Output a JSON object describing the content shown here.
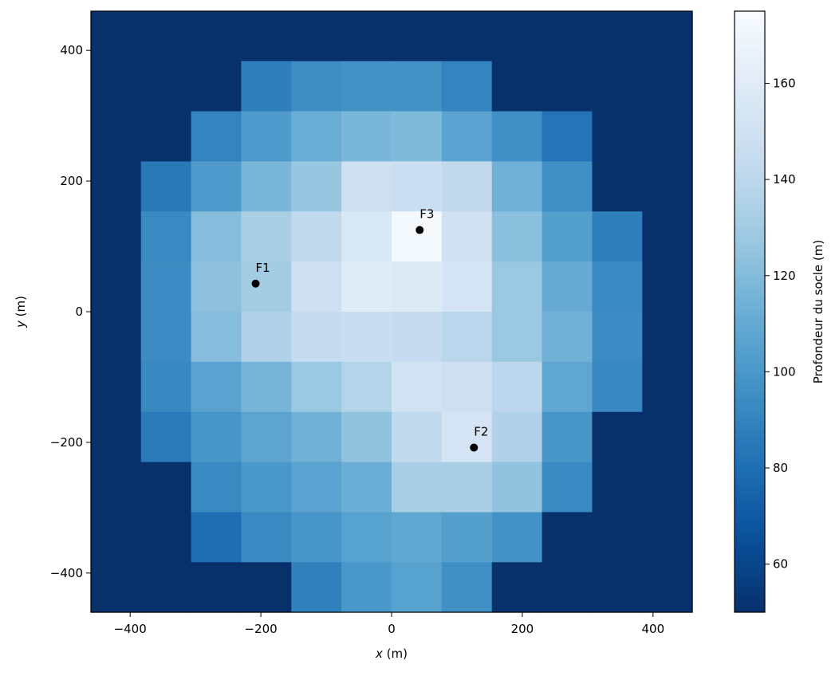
{
  "chart_data": {
    "type": "heatmap",
    "title": "",
    "xlabel_var": "x",
    "xlabel_unit": " (m)",
    "ylabel_var": "y",
    "ylabel_unit": " (m)",
    "colorbar_label": "Profondeur du socle (m)",
    "colormap": "Blues_r",
    "xlim": [
      -460,
      460
    ],
    "ylim": [
      -460,
      460
    ],
    "x_ticks": [
      -400,
      -200,
      0,
      200,
      400
    ],
    "y_ticks": [
      -400,
      -200,
      0,
      200,
      400
    ],
    "x_tick_labels": [
      "−400",
      "−200",
      "0",
      "200",
      "400"
    ],
    "y_tick_labels": [
      "−400",
      "−200",
      "0",
      "200",
      "400"
    ],
    "cell_size": 76.7,
    "color_range": [
      50,
      175
    ],
    "colorbar_ticks": [
      60,
      80,
      100,
      120,
      140,
      160
    ],
    "grid": false,
    "legend": "none",
    "rows_top_to_bottom": [
      [
        50,
        50,
        50,
        50,
        50,
        50,
        50,
        50,
        50,
        50,
        50,
        50
      ],
      [
        50,
        50,
        50,
        88,
        95,
        97,
        97,
        90,
        50,
        50,
        50,
        50
      ],
      [
        50,
        50,
        90,
        102,
        112,
        117,
        119,
        106,
        96,
        82,
        50,
        50
      ],
      [
        50,
        85,
        102,
        117,
        126,
        148,
        147,
        142,
        114,
        96,
        50,
        50
      ],
      [
        50,
        93,
        121,
        133,
        142,
        156,
        173,
        150,
        122,
        104,
        88,
        50
      ],
      [
        50,
        94,
        123,
        130,
        148,
        160,
        158,
        153,
        127,
        111,
        93,
        50
      ],
      [
        50,
        94,
        121,
        135,
        144,
        146,
        144,
        139,
        127,
        114,
        94,
        50
      ],
      [
        50,
        92,
        106,
        116,
        127,
        136,
        151,
        148,
        140,
        108,
        92,
        50
      ],
      [
        50,
        86,
        99,
        107,
        114,
        124,
        142,
        153,
        135,
        99,
        50,
        50
      ],
      [
        50,
        50,
        93,
        100,
        106,
        112,
        133,
        133,
        124,
        93,
        50,
        50
      ],
      [
        50,
        50,
        80,
        93,
        99,
        105,
        108,
        104,
        97,
        50,
        50,
        50
      ],
      [
        50,
        50,
        50,
        50,
        89,
        100,
        105,
        96,
        50,
        50,
        50,
        50
      ]
    ],
    "markers": [
      {
        "label": "F1",
        "x": -208,
        "y": 43
      },
      {
        "label": "F2",
        "x": 126,
        "y": -208
      },
      {
        "label": "F3",
        "x": 43,
        "y": 125
      }
    ]
  }
}
